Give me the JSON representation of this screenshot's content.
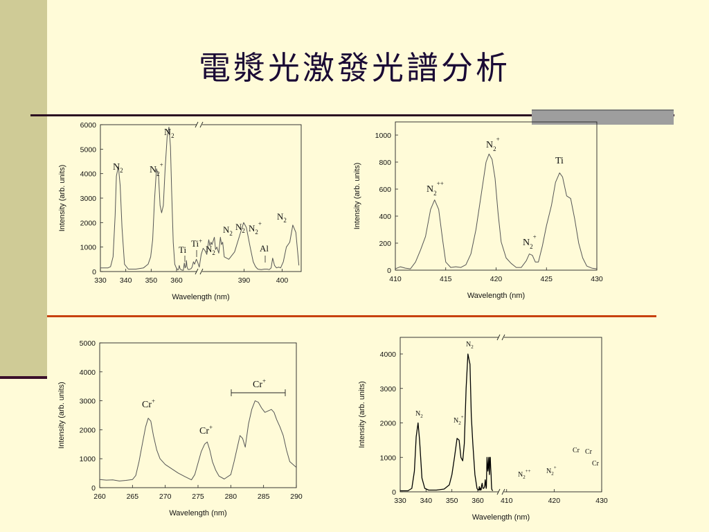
{
  "slide": {
    "title": "電漿光激發光譜分析"
  },
  "chart_data": [
    {
      "type": "line",
      "id": "c1",
      "ylabel": "Intensity (arb. units)",
      "xlabel": "Wavelength (nm)",
      "xticks": [
        330,
        340,
        350,
        360,
        390,
        400
      ],
      "yticks": [
        0,
        1000,
        2000,
        3000,
        4000,
        5000,
        6000
      ],
      "ylim": [
        0,
        6600
      ],
      "axis_break": "360 // 385",
      "color": "#555555",
      "x": [
        330,
        333,
        334,
        335,
        335.8,
        336.3,
        337.1,
        337.8,
        338.5,
        339.5,
        341,
        344,
        347,
        348.8,
        349.8,
        350.6,
        351.3,
        352.1,
        352.9,
        353.5,
        354.1,
        354.8,
        355.5,
        356.3,
        357.0,
        357.6,
        358.1,
        358.7,
        359.3,
        359.9,
        360.5,
        361.0,
        361.4,
        361.8,
        362.2,
        362.8,
        363.5,
        364.0,
        364.4,
        364.8,
        365.1,
        365.4,
        365.8,
        366.4,
        367.5,
        368.0,
        368.7,
        369.3,
        370.2,
        371.0,
        371.7,
        372.7,
        373.7,
        374.7,
        375.6,
        376.6,
        377.2,
        377.8,
        378.3,
        379.5,
        380.1,
        380.8,
        381.8,
        382.6,
        383.2,
        383.8,
        384.6,
        386.0,
        387.5,
        388.9,
        389.9,
        390.6,
        391.6,
        392.4,
        393.0,
        393.6,
        394.5,
        395.3,
        396.1,
        396.6,
        397.1,
        397.5,
        398.0,
        398.5,
        399.1,
        399.6,
        400.3,
        401.1,
        402.0,
        402.8,
        403.6,
        404.4
      ],
      "y": [
        150,
        150,
        200,
        600,
        2300,
        3900,
        4300,
        3500,
        1800,
        300,
        100,
        100,
        150,
        300,
        600,
        1300,
        2900,
        4200,
        3900,
        2700,
        2400,
        2700,
        4200,
        5500,
        5900,
        5100,
        3200,
        1200,
        300,
        150,
        80,
        80,
        250,
        120,
        80,
        60,
        50,
        350,
        150,
        200,
        450,
        200,
        100,
        80,
        120,
        180,
        400,
        300,
        500,
        350,
        180,
        700,
        950,
        850,
        700,
        1300,
        1050,
        1200,
        1100,
        1400,
        900,
        1000,
        750,
        1400,
        1100,
        1200,
        600,
        500,
        800,
        1500,
        2000,
        1800,
        1000,
        400,
        200,
        100,
        80,
        100,
        100,
        80,
        150,
        550,
        250,
        150,
        180,
        150,
        400,
        1000,
        1200,
        1900,
        1600,
        250
      ]
    },
    {
      "type": "line",
      "id": "c2",
      "ylabel": "Intensity (arb. units)",
      "xlabel": "Wavelength (nm)",
      "xticks": [
        410,
        415,
        420,
        425,
        430
      ],
      "yticks": [
        0,
        200,
        400,
        600,
        800,
        1000
      ],
      "xlim": [
        410,
        430
      ],
      "ylim": [
        0,
        1000
      ],
      "color": "#555555",
      "x": [
        410,
        410.5,
        411,
        411.5,
        412,
        412.5,
        413,
        413.5,
        413.9,
        414.3,
        414.7,
        415,
        415.5,
        416,
        416.5,
        417,
        417.5,
        418,
        418.5,
        419,
        419.3,
        419.6,
        419.9,
        420.2,
        420.5,
        421,
        421.5,
        422,
        422.5,
        423,
        423.3,
        423.6,
        423.9,
        424.2,
        424.6,
        425,
        425.5,
        425.9,
        426.3,
        426.6,
        427,
        427.4,
        427.8,
        428.2,
        428.6,
        429,
        429.5,
        430
      ],
      "y": [
        10,
        25,
        15,
        10,
        60,
        150,
        250,
        450,
        520,
        450,
        220,
        60,
        20,
        25,
        20,
        40,
        120,
        300,
        550,
        800,
        860,
        820,
        680,
        420,
        210,
        90,
        50,
        20,
        20,
        70,
        120,
        110,
        60,
        60,
        180,
        330,
        480,
        650,
        720,
        690,
        550,
        530,
        380,
        200,
        90,
        30,
        15,
        10
      ]
    },
    {
      "type": "line",
      "id": "c3",
      "ylabel": "Intensity (arb. units)",
      "xlabel": "Wavelength (nm)",
      "xticks": [
        260,
        265,
        270,
        275,
        280,
        285,
        290
      ],
      "yticks": [
        0,
        1000,
        2000,
        3000,
        4000,
        5000
      ],
      "xlim": [
        260,
        290
      ],
      "ylim": [
        0,
        5000
      ],
      "color": "#555555",
      "x": [
        260,
        261,
        262,
        263,
        264,
        265,
        265.5,
        266,
        266.5,
        267,
        267.4,
        267.8,
        268.2,
        268.7,
        269.2,
        270,
        271,
        272,
        273,
        274,
        274.5,
        275,
        275.5,
        276,
        276.4,
        276.8,
        277.2,
        277.7,
        278.2,
        279,
        280,
        280.5,
        281,
        281.4,
        281.8,
        282.2,
        282.7,
        283.2,
        283.7,
        284.2,
        284.7,
        285.2,
        285.7,
        286.2,
        286.6,
        287,
        287.5,
        288,
        288.5,
        289,
        290
      ],
      "y": [
        280,
        260,
        270,
        230,
        250,
        280,
        420,
        900,
        1500,
        2100,
        2400,
        2300,
        1800,
        1300,
        1000,
        800,
        650,
        500,
        380,
        270,
        450,
        850,
        1250,
        1500,
        1580,
        1300,
        900,
        600,
        400,
        300,
        450,
        900,
        1400,
        1800,
        1700,
        1400,
        2200,
        2700,
        3000,
        2950,
        2750,
        2600,
        2650,
        2700,
        2600,
        2350,
        2100,
        1800,
        1300,
        900,
        700
      ]
    },
    {
      "type": "line",
      "id": "c4",
      "ylabel": "Intensity (arb. units)",
      "xlabel": "Wavelength (nm)",
      "xticks": [
        330,
        340,
        350,
        360,
        410,
        420,
        430
      ],
      "yticks": [
        0,
        1000,
        2000,
        3000,
        4000
      ],
      "ylim": [
        0,
        4500
      ],
      "axis_break": "360 // 408",
      "color": "#000000",
      "x": [
        330,
        333,
        334.5,
        335.5,
        336.2,
        336.9,
        337.5,
        338.4,
        339.5,
        341,
        344,
        347,
        349,
        350,
        351,
        352,
        352.8,
        353.5,
        354.2,
        354.8,
        355.5,
        356.2,
        357,
        357.5,
        358.1,
        358.9,
        359.7,
        361,
        362,
        363,
        364,
        365,
        366,
        367,
        367.5,
        368,
        368.5,
        369,
        370,
        371,
        372,
        373,
        374,
        376,
        377.5,
        378.5,
        379.5,
        380.5,
        381,
        381.5,
        382,
        383,
        384,
        385,
        386,
        387,
        388,
        389,
        390,
        391,
        392,
        393,
        393.7,
        394.4,
        395.1,
        395.8,
        396.5,
        397.2
      ],
      "y": [
        30,
        30,
        100,
        600,
        1600,
        2000,
        1500,
        400,
        100,
        50,
        50,
        80,
        200,
        500,
        1000,
        1550,
        1500,
        1000,
        900,
        1400,
        3000,
        4000,
        3700,
        2200,
        1400,
        500,
        100,
        50,
        50,
        80,
        150,
        50,
        100,
        50,
        80,
        120,
        60,
        150,
        200,
        250,
        150,
        100,
        100,
        120,
        200,
        350,
        250,
        120,
        100,
        150,
        500,
        1000,
        800,
        600,
        750,
        1000,
        700,
        500,
        1000,
        1000,
        700,
        500,
        250,
        100,
        60,
        50,
        40,
        30
      ]
    }
  ],
  "annotations": {
    "c1": {
      "n2_a": "N",
      "n2_a_sub": "2",
      "n2_b": "N",
      "n2_b_sub": "2",
      "n2p_a": "N",
      "n2p_a_sub": "2",
      "n2p_a_sup": "+",
      "ti_a": "Ti",
      "ti_b": "Ti",
      "ti_b_sup": "+",
      "n2_c": "N",
      "n2_c_sub": "2",
      "n2_d": "N",
      "n2_d_sub": "2",
      "n2_e": "N",
      "n2_e_sub": "2",
      "n2p_b": "N",
      "n2p_b_sub": "2",
      "n2p_b_sup": "+",
      "al": "Al",
      "n2_f": "N",
      "n2_f_sub": "2"
    },
    "c2": {
      "n2pp": "N",
      "n2pp_sub": "2",
      "n2pp_sup": "++",
      "n2p_a": "N",
      "n2p_a_sub": "2",
      "n2p_a_sup": "+",
      "n2p_b": "N",
      "n2p_b_sub": "2",
      "n2p_b_sup": "+",
      "ti": "Ti"
    },
    "c3": {
      "cr_a": "Cr",
      "cr_a_sup": "+",
      "cr_b": "Cr",
      "cr_b_sup": "+",
      "cr_c": "Cr",
      "cr_c_sup": "+"
    },
    "c4": {
      "n2_a": "N",
      "n2_a_sub": "2",
      "n2_b": "N",
      "n2_b_sub": "2",
      "n2p_a": "N",
      "n2p_a_sub": "2",
      "n2p_a_sup": "+",
      "n2pp": "N",
      "n2pp_sub": "2",
      "n2pp_sup": "++",
      "n2p_b": "N",
      "n2p_b_sub": "2",
      "n2p_b_sup": "+",
      "cr_a": "Cr",
      "cr_b": "Cr",
      "cr_c": "Cr"
    }
  }
}
